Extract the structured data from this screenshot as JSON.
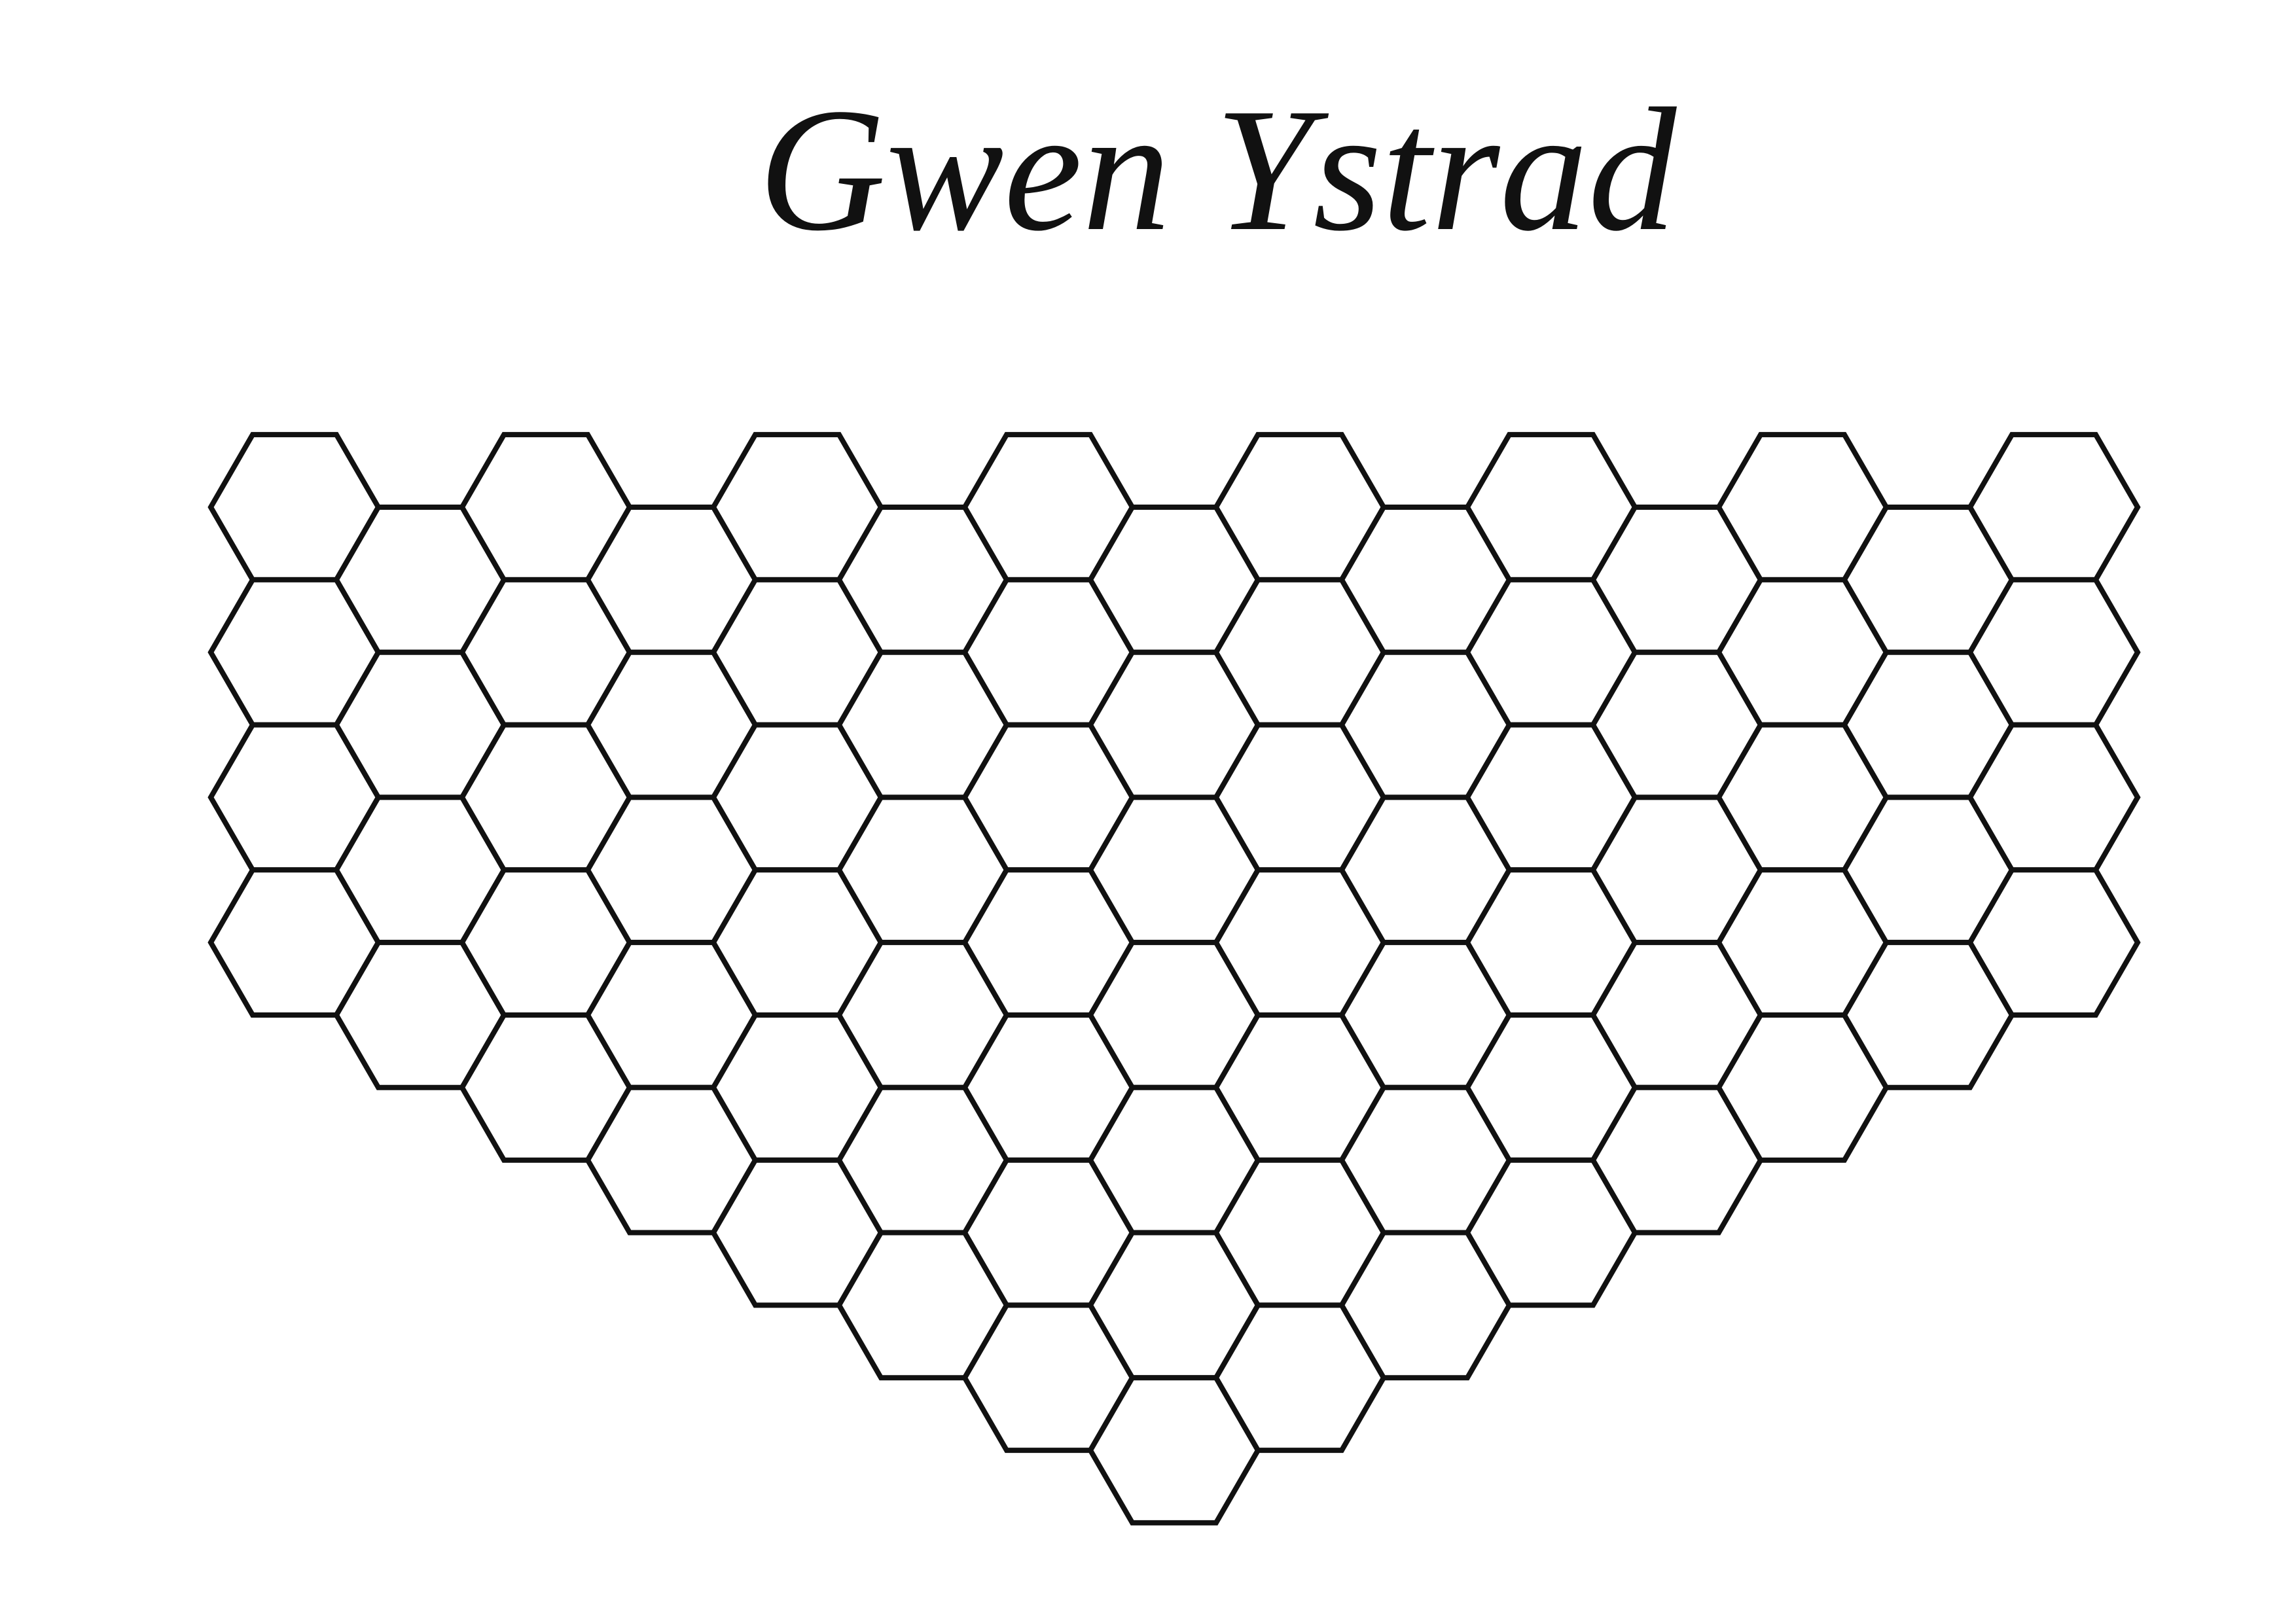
{
  "title": "Gwen Ystrad"
}
